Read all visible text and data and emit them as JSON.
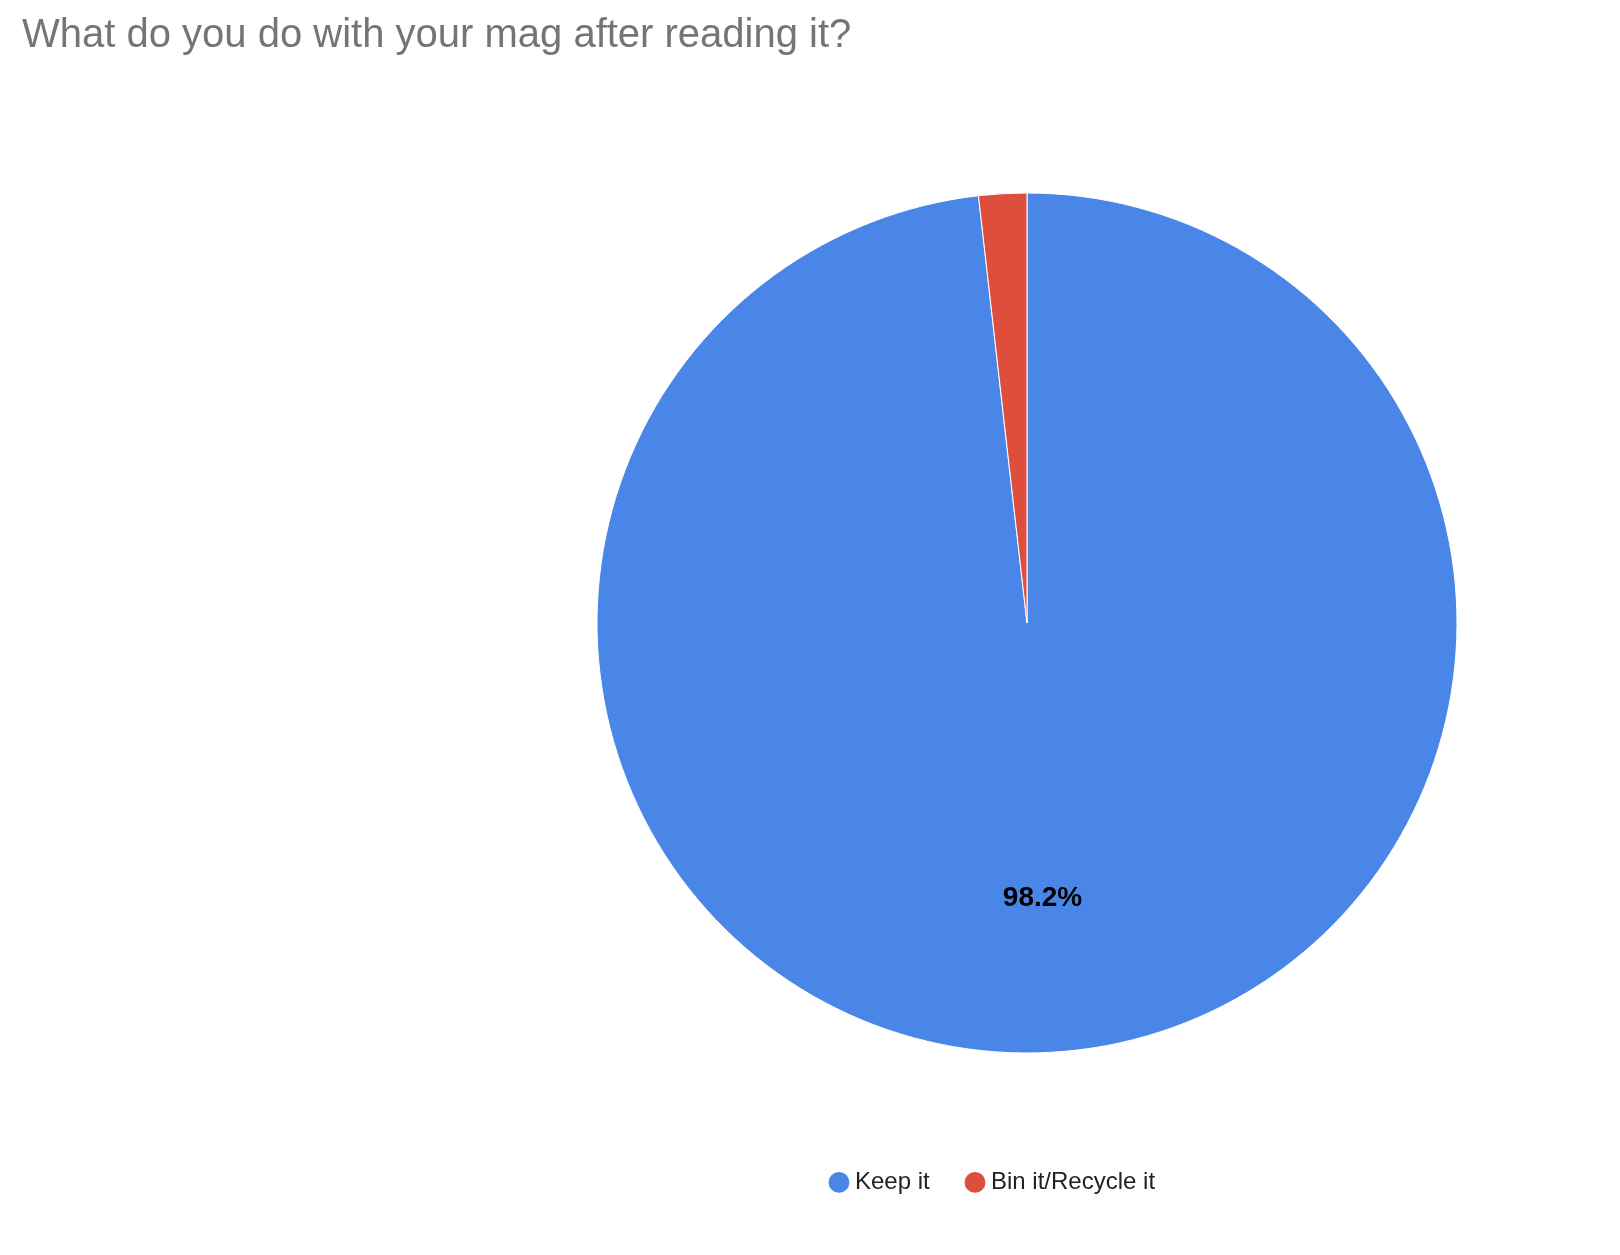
{
  "chart_data": {
    "type": "pie",
    "title": "What do you do with your mag after reading it?",
    "categories": [
      "Keep it",
      "Bin it/Recycle it"
    ],
    "values": [
      98.2,
      1.8
    ],
    "colors": [
      "#4a86e8",
      "#dd4e3c"
    ],
    "value_labels": [
      "98.2%",
      null
    ],
    "legend": "bottom"
  }
}
